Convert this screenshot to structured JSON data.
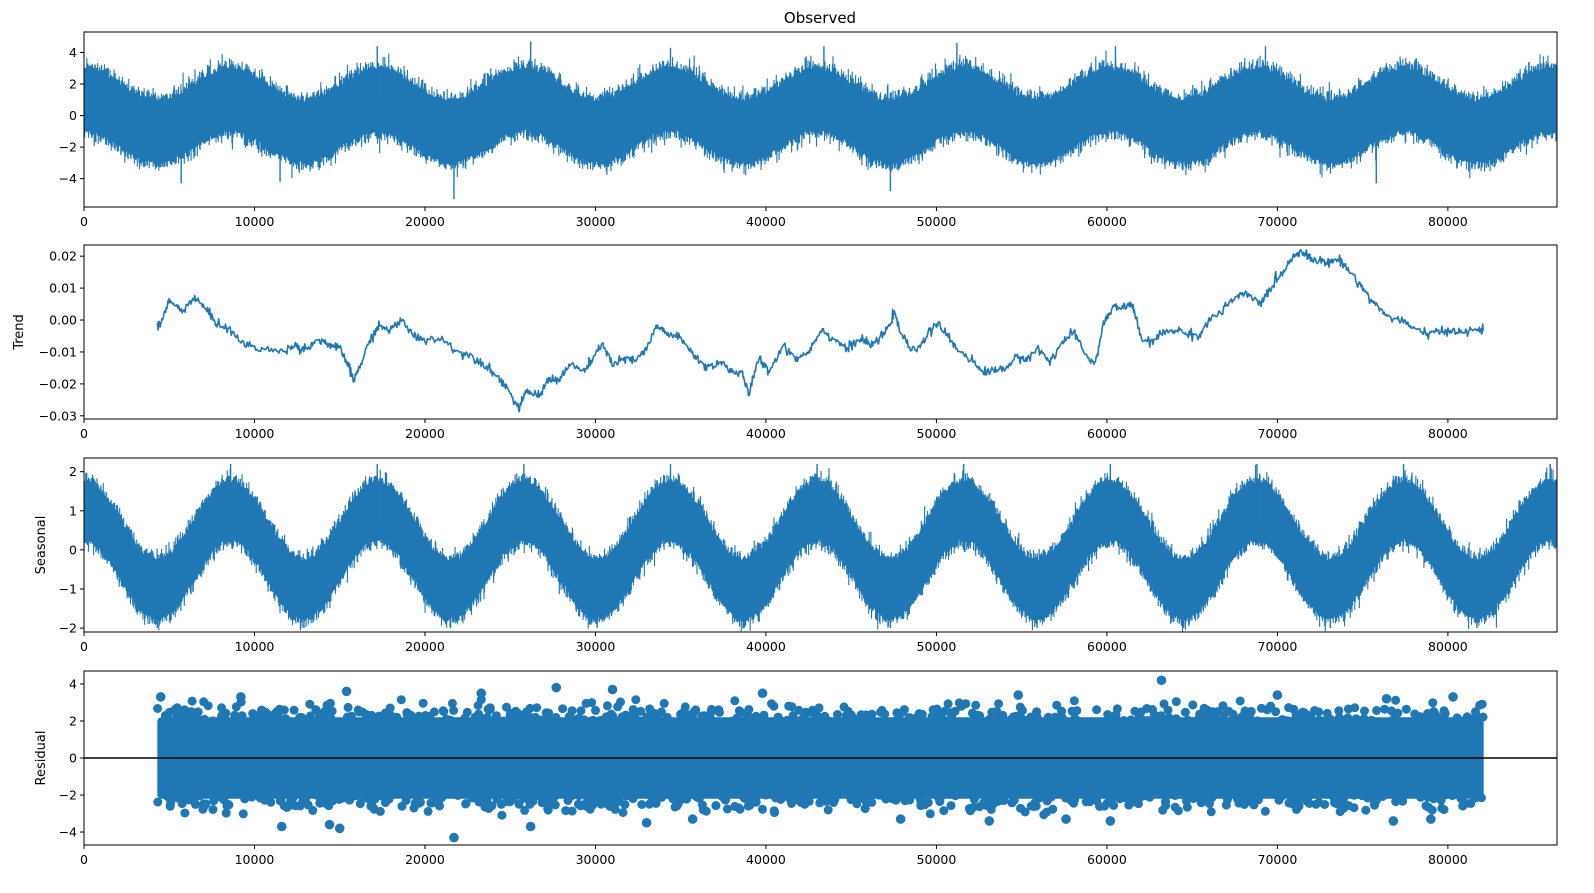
{
  "chart_data": [
    {
      "type": "line",
      "title": "Observed",
      "ylabel": "",
      "xlim": [
        0,
        86400
      ],
      "ylim": [
        -5.8,
        5.3
      ],
      "xticks": [
        0,
        10000,
        20000,
        30000,
        40000,
        50000,
        60000,
        70000,
        80000
      ],
      "yticks": [
        -4,
        -2,
        0,
        2,
        4
      ],
      "color": "#1f77b4",
      "series": {
        "x_range": [
          0,
          86400
        ],
        "period": 8600,
        "seasonal_amplitude": 1.0,
        "seasonal_phase_peak_x": 8600,
        "noise_band": [
          -2.5,
          2.5
        ],
        "extremes": [
          {
            "x": 21700,
            "y": -5.3
          },
          {
            "x": 26200,
            "y": 4.7
          },
          {
            "x": 47300,
            "y": -4.8
          },
          {
            "x": 51200,
            "y": 4.6
          },
          {
            "x": 5700,
            "y": -4.3
          },
          {
            "x": 11500,
            "y": -4.2
          },
          {
            "x": 17200,
            "y": 4.4
          },
          {
            "x": 34400,
            "y": 4.3
          },
          {
            "x": 43400,
            "y": 4.4
          },
          {
            "x": 60500,
            "y": 4.4
          },
          {
            "x": 69300,
            "y": 4.4
          },
          {
            "x": 75800,
            "y": -4.3
          }
        ]
      }
    },
    {
      "type": "line",
      "title": "",
      "ylabel": "Trend",
      "xlim": [
        0,
        86400
      ],
      "ylim": [
        -0.031,
        0.0235
      ],
      "xticks": [
        0,
        10000,
        20000,
        30000,
        40000,
        50000,
        60000,
        70000,
        80000
      ],
      "yticks": [
        -0.03,
        -0.02,
        -0.01,
        0.0,
        0.01,
        0.02
      ],
      "ytick_labels": [
        "−0.03",
        "−0.02",
        "−0.01",
        "0.00",
        "0.01",
        "0.02"
      ],
      "color": "#1f77b4",
      "series": {
        "x": [
          4300,
          4500,
          5000,
          5700,
          6500,
          7200,
          7800,
          8500,
          9500,
          10500,
          11500,
          12300,
          13000,
          13800,
          14500,
          15000,
          15500,
          15800,
          16300,
          16800,
          17300,
          18000,
          18700,
          19300,
          20000,
          21000,
          22000,
          23000,
          23500,
          24300,
          24800,
          25500,
          26000,
          26700,
          27300,
          27800,
          28500,
          29300,
          29800,
          30400,
          31000,
          31800,
          32300,
          33000,
          33600,
          34200,
          35000,
          35800,
          36500,
          37300,
          38000,
          38600,
          39000,
          39600,
          40200,
          41000,
          41800,
          42500,
          43200,
          44000,
          44800,
          45500,
          46200,
          47000,
          47500,
          48000,
          48600,
          49300,
          50000,
          50500,
          51200,
          52000,
          52600,
          53300,
          54000,
          54700,
          55300,
          56000,
          56600,
          57400,
          58000,
          58800,
          59300,
          59800,
          60400,
          61000,
          61500,
          62000,
          62600,
          63300,
          64000,
          64600,
          65400,
          66000,
          66800,
          67500,
          68300,
          69000,
          69600,
          70300,
          70800,
          71300,
          72000,
          72800,
          73600,
          74300,
          75000,
          75700,
          76500,
          77300,
          78000,
          78800,
          79500,
          80200,
          81000,
          81700,
          82100
        ],
        "y": [
          -0.002,
          -0.001,
          0.006,
          0.003,
          0.007,
          0.003,
          -0.001,
          -0.003,
          -0.008,
          -0.009,
          -0.01,
          -0.008,
          -0.009,
          -0.006,
          -0.008,
          -0.009,
          -0.014,
          -0.019,
          -0.013,
          -0.006,
          -0.002,
          -0.003,
          0.0,
          -0.005,
          -0.006,
          -0.006,
          -0.01,
          -0.012,
          -0.014,
          -0.018,
          -0.021,
          -0.028,
          -0.022,
          -0.024,
          -0.018,
          -0.019,
          -0.014,
          -0.016,
          -0.013,
          -0.007,
          -0.014,
          -0.012,
          -0.013,
          -0.009,
          -0.002,
          -0.004,
          -0.006,
          -0.011,
          -0.015,
          -0.013,
          -0.016,
          -0.017,
          -0.023,
          -0.012,
          -0.016,
          -0.008,
          -0.012,
          -0.01,
          -0.003,
          -0.006,
          -0.009,
          -0.006,
          -0.008,
          -0.004,
          0.002,
          -0.005,
          -0.01,
          -0.006,
          -0.001,
          -0.004,
          -0.009,
          -0.012,
          -0.016,
          -0.016,
          -0.015,
          -0.012,
          -0.012,
          -0.009,
          -0.013,
          -0.007,
          -0.004,
          -0.011,
          -0.014,
          -0.001,
          0.004,
          0.004,
          0.005,
          -0.006,
          -0.007,
          -0.004,
          -0.003,
          -0.004,
          -0.005,
          0.0,
          0.003,
          0.007,
          0.008,
          0.005,
          0.01,
          0.015,
          0.019,
          0.022,
          0.019,
          0.018,
          0.019,
          0.015,
          0.01,
          0.005,
          0.001,
          0.0,
          -0.003,
          -0.004,
          -0.004,
          -0.003,
          -0.004,
          -0.003,
          -0.003
        ]
      }
    },
    {
      "type": "line",
      "title": "",
      "ylabel": "Seasonal",
      "xlim": [
        0,
        86400
      ],
      "ylim": [
        -2.1,
        2.35
      ],
      "xticks": [
        0,
        10000,
        20000,
        30000,
        40000,
        50000,
        60000,
        70000,
        80000
      ],
      "yticks": [
        -2,
        -1,
        0,
        1,
        2
      ],
      "color": "#1f77b4",
      "series": {
        "x_range": [
          0,
          86400
        ],
        "period": 8600,
        "amplitude": 1.0,
        "phase_peak_x": 8600,
        "noise_band": [
          -0.95,
          0.95
        ],
        "max": 2.2,
        "min": -2.0
      }
    },
    {
      "type": "scatter",
      "title": "",
      "ylabel": "Residual",
      "xlim": [
        0,
        86400
      ],
      "ylim": [
        -4.7,
        4.7
      ],
      "xticks": [
        0,
        10000,
        20000,
        30000,
        40000,
        50000,
        60000,
        70000,
        80000
      ],
      "yticks": [
        -4,
        -2,
        0,
        2,
        4
      ],
      "color": "#1f77b4",
      "zero_line": true,
      "series": {
        "x_range": [
          4300,
          82100
        ],
        "core_band": [
          -2.2,
          2.2
        ],
        "outliers": [
          {
            "x": 63200,
            "y": 4.2
          },
          {
            "x": 21700,
            "y": -4.3
          },
          {
            "x": 27700,
            "y": 3.8
          },
          {
            "x": 31000,
            "y": 3.7
          },
          {
            "x": 15400,
            "y": 3.6
          },
          {
            "x": 11600,
            "y": -3.7
          },
          {
            "x": 15000,
            "y": -3.8
          },
          {
            "x": 14400,
            "y": -3.6
          },
          {
            "x": 26200,
            "y": -3.7
          },
          {
            "x": 76400,
            "y": 3.2
          },
          {
            "x": 80300,
            "y": 3.3
          },
          {
            "x": 39800,
            "y": 3.5
          },
          {
            "x": 70000,
            "y": 3.4
          },
          {
            "x": 54800,
            "y": 3.4
          },
          {
            "x": 4500,
            "y": 3.3
          },
          {
            "x": 33000,
            "y": -3.5
          },
          {
            "x": 60200,
            "y": -3.4
          },
          {
            "x": 76800,
            "y": -3.4
          },
          {
            "x": 53100,
            "y": -3.4
          },
          {
            "x": 23300,
            "y": 3.5
          },
          {
            "x": 57600,
            "y": -3.3
          },
          {
            "x": 47900,
            "y": -3.3
          },
          {
            "x": 35700,
            "y": -3.3
          },
          {
            "x": 79000,
            "y": -3.3
          },
          {
            "x": 9200,
            "y": 3.3
          }
        ]
      }
    }
  ],
  "colors": {
    "series": "#1f77b4",
    "axis": "#000000",
    "zero_line": "#000000"
  }
}
